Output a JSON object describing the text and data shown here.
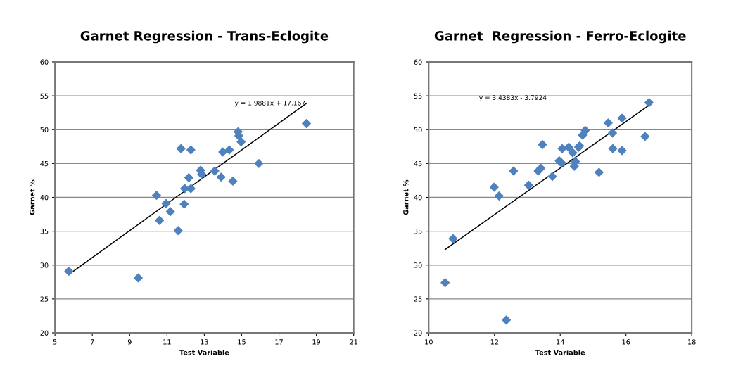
{
  "chart_data": [
    {
      "type": "scatter",
      "title": "Garnet Regression - Trans-Eclogite",
      "xlabel": "Test Variable",
      "ylabel": "Garnet %",
      "xlim": [
        5,
        21
      ],
      "xticks": [
        5,
        7,
        9,
        11,
        13,
        15,
        17,
        19,
        21
      ],
      "ylim": [
        20,
        60
      ],
      "yticks": [
        20,
        25,
        30,
        35,
        40,
        45,
        50,
        55,
        60
      ],
      "grid": "y",
      "legend": false,
      "series": [
        {
          "marker": "diamond",
          "color": "#4f81bd",
          "x": [
            5.74,
            9.46,
            10.44,
            10.6,
            10.95,
            11.18,
            11.6,
            11.75,
            11.92,
            11.95,
            12.17,
            12.28,
            12.28,
            12.8,
            12.86,
            13.56,
            13.9,
            13.99,
            14.34,
            14.53,
            14.81,
            14.85,
            14.97,
            15.92,
            18.47
          ],
          "values": [
            29.1,
            28.1,
            40.3,
            36.6,
            39.1,
            37.9,
            35.1,
            47.2,
            39.0,
            41.3,
            42.9,
            47.0,
            41.3,
            44.0,
            43.4,
            43.9,
            43.0,
            46.7,
            47.0,
            42.4,
            49.7,
            49.1,
            48.2,
            45.0,
            50.9
          ]
        },
        {
          "type": "line",
          "color": "#000000",
          "x": [
            5.74,
            18.47
          ],
          "values": [
            28.6,
            53.9
          ]
        }
      ],
      "annotations": [
        "y = 1.9881x + 17.167"
      ]
    },
    {
      "type": "scatter",
      "title": "Garnet  Regression - Ferro-Eclogite",
      "xlabel": "Test Variable",
      "ylabel": "Garnet %",
      "xlim": [
        10,
        18
      ],
      "xticks": [
        10,
        12,
        14,
        16,
        18
      ],
      "ylim": [
        20,
        60
      ],
      "yticks": [
        20,
        25,
        30,
        35,
        40,
        45,
        50,
        55,
        60
      ],
      "grid": "y",
      "legend": false,
      "series": [
        {
          "marker": "diamond",
          "color": "#4f81bd",
          "x": [
            10.5,
            10.74,
            11.99,
            12.14,
            12.36,
            12.58,
            13.04,
            13.33,
            13.41,
            13.46,
            13.76,
            13.97,
            14.04,
            14.06,
            14.26,
            14.38,
            14.43,
            14.46,
            14.56,
            14.59,
            14.68,
            14.76,
            15.18,
            15.46,
            15.59,
            15.6,
            15.88,
            15.88,
            16.58,
            16.7
          ],
          "values": [
            27.4,
            33.9,
            41.5,
            40.2,
            21.9,
            43.9,
            41.8,
            43.9,
            44.3,
            47.8,
            43.1,
            45.4,
            45.1,
            47.2,
            47.4,
            46.6,
            44.6,
            45.3,
            47.4,
            47.6,
            49.2,
            49.9,
            43.7,
            51.0,
            49.5,
            47.2,
            51.7,
            46.9,
            49.0,
            54.0
          ]
        },
        {
          "type": "line",
          "color": "#000000",
          "x": [
            10.5,
            16.7
          ],
          "values": [
            32.3,
            53.6
          ]
        }
      ],
      "annotations": [
        "y = 3.4383x - 3.7924"
      ]
    }
  ]
}
